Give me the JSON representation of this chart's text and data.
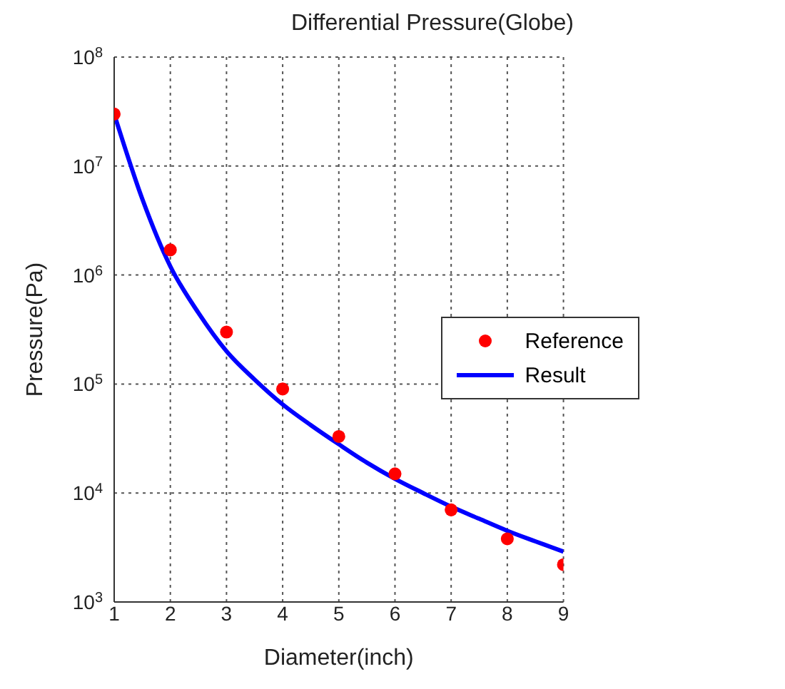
{
  "chart_data": {
    "type": "scatter",
    "title": "Differential Pressure(Globe)",
    "xlabel": "Diameter(inch)",
    "ylabel": "Pressure(Pa)",
    "log": "y",
    "grid": true,
    "legend": "right",
    "xlim": [
      1,
      9
    ],
    "xticks": [
      1,
      2,
      3,
      4,
      5,
      6,
      7,
      8,
      9
    ],
    "ylim": [
      1000,
      100000000
    ],
    "yticks": [
      {
        "value": 1000,
        "label": "10$^{3}$"
      },
      {
        "value": 10000,
        "label": "10$^{4}$"
      },
      {
        "value": 100000,
        "label": "10$^{5}$"
      },
      {
        "value": 1000000,
        "label": "10$^{6}$"
      },
      {
        "value": 10000000,
        "label": "10$^{7}$"
      },
      {
        "value": 100000000,
        "label": "10$^{8}$"
      }
    ],
    "series": [
      {
        "name": "Reference",
        "marker": "circle",
        "color": "#ff0000",
        "x": [
          1,
          2,
          3,
          4,
          5,
          6,
          7,
          8,
          9
        ],
        "values": [
          30000000,
          1700000,
          300000,
          90000,
          33000,
          15000,
          7000,
          3800,
          2200
        ]
      },
      {
        "name": "Result",
        "type": "line",
        "marker": "none",
        "line_style": "solid",
        "color": "#0000ff",
        "x": [
          1,
          1.5,
          2,
          2.5,
          3,
          3.5,
          4,
          4.5,
          5,
          5.5,
          6,
          6.5,
          7,
          7.5,
          8,
          8.5,
          9
        ],
        "values": [
          30000000,
          5000000,
          1200000,
          450000,
          200000,
          110000,
          65000,
          42000,
          28000,
          19000,
          13500,
          10000,
          7500,
          5800,
          4500,
          3600,
          2900
        ]
      }
    ]
  }
}
